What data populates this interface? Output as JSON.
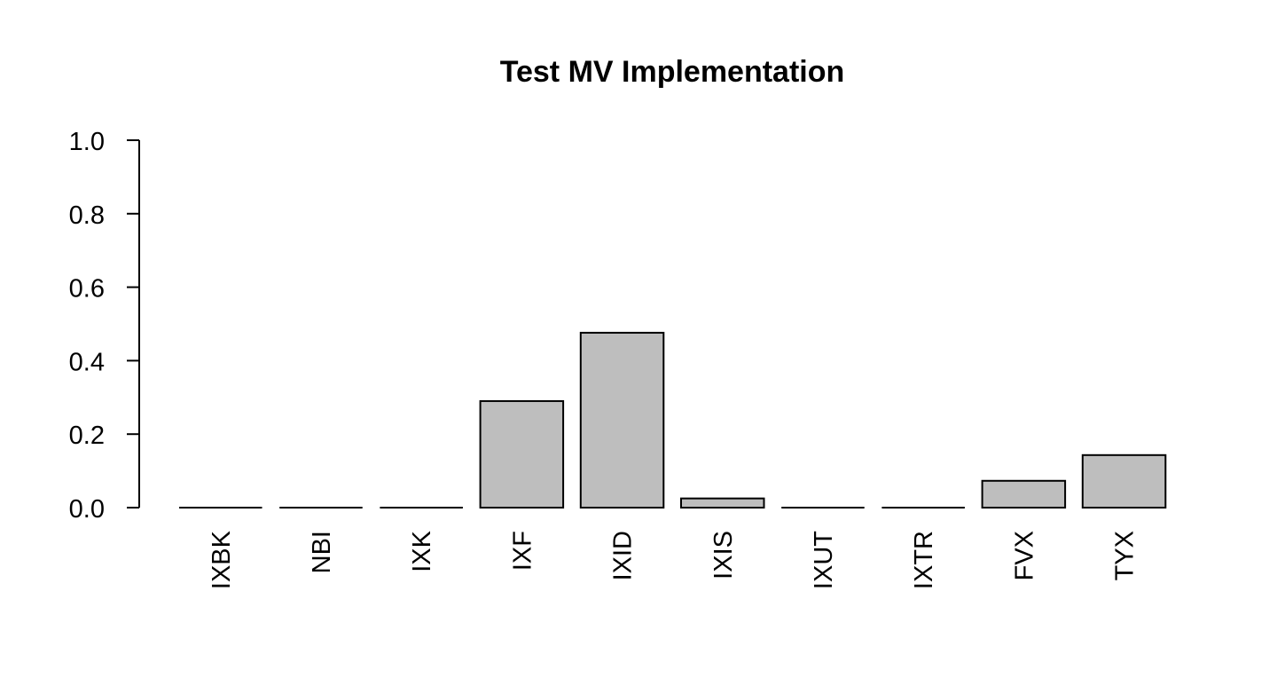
{
  "chart_data": {
    "type": "bar",
    "title": "Test MV Implementation",
    "xlabel": "",
    "ylabel": "",
    "categories": [
      "IXBK",
      "NBI",
      "IXK",
      "IXF",
      "IXID",
      "IXIS",
      "IXUT",
      "IXTR",
      "FVX",
      "TYX"
    ],
    "values": [
      0.0,
      0.0,
      0.0,
      0.29,
      0.476,
      0.025,
      0.0,
      0.0,
      0.073,
      0.143
    ],
    "ylim": [
      0,
      1
    ],
    "yticks": [
      0.0,
      0.2,
      0.4,
      0.6,
      0.8,
      1.0
    ],
    "ytick_labels": [
      "0.0",
      "0.2",
      "0.4",
      "0.6",
      "0.8",
      "1.0"
    ],
    "grid": false,
    "legend": "none",
    "bar_color": "#bebebe",
    "bar_border_color": "#000000"
  }
}
